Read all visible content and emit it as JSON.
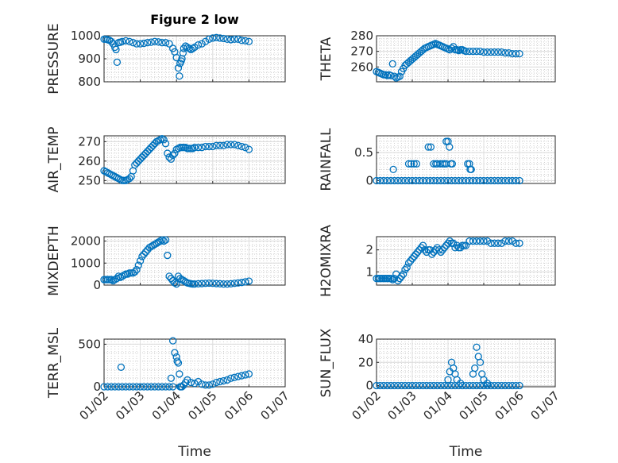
{
  "figure": {
    "title": "Figure 2 low",
    "x_axis_label": "Time",
    "x_tick_labels": [
      "01/02",
      "01/03",
      "01/04",
      "01/05",
      "01/06",
      "01/07"
    ],
    "marker_color": "#0072BD"
  },
  "chart_data": [
    {
      "type": "scatter",
      "id": "pressure",
      "ylabel": "PRESSURE",
      "title": "Figure 2 low",
      "ylim": [
        800,
        1000
      ],
      "yticks": [
        800,
        900,
        1000
      ],
      "x": [
        1.0,
        1.05,
        1.1,
        1.15,
        1.2,
        1.25,
        1.3,
        1.33,
        1.36,
        1.4,
        1.45,
        1.5,
        1.6,
        1.7,
        1.8,
        1.9,
        2.0,
        2.1,
        2.2,
        2.3,
        2.4,
        2.5,
        2.6,
        2.7,
        2.8,
        2.9,
        2.95,
        3.0,
        3.05,
        3.08,
        3.1,
        3.13,
        3.15,
        3.18,
        3.2,
        3.25,
        3.3,
        3.35,
        3.4,
        3.45,
        3.5,
        3.6,
        3.7,
        3.8,
        3.9,
        4.0,
        4.1,
        4.2,
        4.3,
        4.4,
        4.5,
        4.6,
        4.7,
        4.8,
        4.9,
        5.0
      ],
      "values": [
        985,
        985,
        983,
        980,
        975,
        965,
        950,
        940,
        885,
        970,
        972,
        975,
        978,
        975,
        970,
        965,
        965,
        967,
        970,
        972,
        975,
        973,
        970,
        970,
        965,
        945,
        930,
        905,
        860,
        825,
        880,
        890,
        900,
        925,
        945,
        955,
        950,
        945,
        940,
        945,
        950,
        960,
        965,
        975,
        985,
        990,
        992,
        990,
        988,
        985,
        983,
        985,
        985,
        980,
        978,
        975
      ]
    },
    {
      "type": "scatter",
      "id": "theta",
      "ylabel": "THETA",
      "ylim": [
        250.5,
        280
      ],
      "yticks": [
        260,
        270,
        280
      ],
      "x": [
        1.0,
        1.05,
        1.1,
        1.15,
        1.2,
        1.25,
        1.3,
        1.35,
        1.4,
        1.45,
        1.5,
        1.55,
        1.6,
        1.65,
        1.7,
        1.75,
        1.8,
        1.85,
        1.9,
        1.95,
        2.0,
        2.05,
        2.1,
        2.15,
        2.2,
        2.25,
        2.3,
        2.35,
        2.4,
        2.45,
        2.5,
        2.55,
        2.6,
        2.65,
        2.7,
        2.75,
        2.8,
        2.85,
        2.9,
        2.95,
        3.0,
        3.05,
        3.1,
        3.15,
        3.2,
        3.25,
        3.3,
        3.35,
        3.4,
        3.45,
        3.5,
        3.6,
        3.7,
        3.8,
        3.9,
        4.0,
        4.1,
        4.2,
        4.3,
        4.4,
        4.5,
        4.6,
        4.7,
        4.8,
        4.9,
        5.0
      ],
      "values": [
        257,
        256.5,
        256,
        255.5,
        255,
        255,
        254.5,
        255,
        254.5,
        262,
        254,
        253,
        253.5,
        254,
        257,
        259,
        261,
        262,
        263,
        264,
        265,
        266,
        267,
        268,
        269,
        270,
        271,
        272,
        272.5,
        273,
        273.5,
        274,
        274.5,
        275,
        274.5,
        274,
        273.5,
        273,
        272.5,
        272,
        271.5,
        271,
        272,
        273,
        271,
        271,
        270.5,
        271,
        271,
        270.5,
        270,
        270,
        270,
        270,
        270,
        269.5,
        269.5,
        269.5,
        269.5,
        269.5,
        269.5,
        269,
        269,
        268.5,
        268.5,
        268.5
      ]
    },
    {
      "type": "scatter",
      "id": "air_temp",
      "ylabel": "AIR_TEMP",
      "ylim": [
        248.5,
        273
      ],
      "yticks": [
        250,
        260,
        270
      ],
      "x": [
        1.0,
        1.05,
        1.1,
        1.15,
        1.2,
        1.25,
        1.3,
        1.35,
        1.4,
        1.45,
        1.5,
        1.55,
        1.6,
        1.65,
        1.7,
        1.75,
        1.8,
        1.85,
        1.9,
        1.95,
        2.0,
        2.05,
        2.1,
        2.15,
        2.2,
        2.25,
        2.3,
        2.35,
        2.4,
        2.45,
        2.5,
        2.55,
        2.6,
        2.65,
        2.7,
        2.75,
        2.8,
        2.85,
        2.9,
        2.95,
        3.0,
        3.05,
        3.1,
        3.15,
        3.2,
        3.25,
        3.3,
        3.35,
        3.4,
        3.45,
        3.5,
        3.6,
        3.7,
        3.8,
        3.9,
        4.0,
        4.1,
        4.2,
        4.3,
        4.4,
        4.5,
        4.6,
        4.7,
        4.8,
        4.9,
        5.0
      ],
      "values": [
        255,
        254.5,
        254,
        253.5,
        253,
        252.5,
        252,
        251.5,
        251,
        250.5,
        250,
        250,
        250,
        250.5,
        251,
        252,
        255,
        258,
        259,
        260,
        261,
        262,
        263,
        264,
        265,
        266,
        267,
        268,
        269,
        270,
        270.5,
        271,
        271.5,
        271,
        269,
        264,
        262,
        261,
        263,
        264,
        266,
        266.5,
        267,
        267,
        267,
        267,
        266.5,
        266.5,
        266.5,
        266.5,
        267,
        267,
        267,
        267.5,
        267.5,
        267.5,
        268,
        268,
        268,
        268.5,
        268.5,
        268.5,
        268,
        267.5,
        267,
        266
      ]
    },
    {
      "type": "scatter",
      "id": "rainfall",
      "ylabel": "RAINFALL",
      "ylim": [
        -0.05,
        0.8
      ],
      "yticks": [
        0,
        0.5
      ],
      "x": [
        1.0,
        1.1,
        1.2,
        1.3,
        1.4,
        1.5,
        1.6,
        1.7,
        1.8,
        1.9,
        2.0,
        2.1,
        2.2,
        2.3,
        2.4,
        2.5,
        2.6,
        2.7,
        2.8,
        2.9,
        3.0,
        3.1,
        3.2,
        3.3,
        3.4,
        3.5,
        3.6,
        3.7,
        3.8,
        3.9,
        4.0,
        4.1,
        4.2,
        4.3,
        4.4,
        4.5,
        4.6,
        4.7,
        4.8,
        4.9,
        5.0,
        1.47,
        1.9,
        1.97,
        2.05,
        2.12,
        2.45,
        2.52,
        2.6,
        2.66,
        2.7,
        2.78,
        2.85,
        2.9,
        2.95,
        3.0,
        3.04,
        3.08,
        2.95,
        3.12,
        3.55,
        3.6,
        3.62,
        3.65
      ],
      "values": [
        0,
        0,
        0,
        0,
        0,
        0,
        0,
        0,
        0,
        0,
        0,
        0,
        0,
        0,
        0,
        0,
        0,
        0,
        0,
        0,
        0,
        0,
        0,
        0,
        0,
        0,
        0,
        0,
        0,
        0,
        0,
        0,
        0,
        0,
        0,
        0,
        0,
        0,
        0,
        0,
        0,
        0.2,
        0.3,
        0.3,
        0.3,
        0.3,
        0.6,
        0.6,
        0.3,
        0.3,
        0.3,
        0.3,
        0.3,
        0.3,
        0.7,
        0.7,
        0.6,
        0.3,
        0.3,
        0.3,
        0.3,
        0.3,
        0.2,
        0.2
      ]
    },
    {
      "type": "scatter",
      "id": "mixdepth",
      "ylabel": "MIXDEPTH",
      "ylim": [
        0,
        2200
      ],
      "yticks": [
        0,
        1000,
        2000
      ],
      "x": [
        1.0,
        1.05,
        1.1,
        1.15,
        1.2,
        1.25,
        1.3,
        1.35,
        1.4,
        1.45,
        1.5,
        1.55,
        1.6,
        1.65,
        1.7,
        1.75,
        1.8,
        1.85,
        1.9,
        1.95,
        2.0,
        2.05,
        2.1,
        2.15,
        2.2,
        2.25,
        2.3,
        2.35,
        2.4,
        2.45,
        2.5,
        2.55,
        2.6,
        2.65,
        2.7,
        2.75,
        2.8,
        2.85,
        2.9,
        2.95,
        3.0,
        3.05,
        3.1,
        3.15,
        3.2,
        3.25,
        3.3,
        3.35,
        3.4,
        3.45,
        3.5,
        3.6,
        3.7,
        3.8,
        3.9,
        4.0,
        4.1,
        4.2,
        4.3,
        4.4,
        4.5,
        4.6,
        4.7,
        4.8,
        4.9,
        5.0
      ],
      "values": [
        250,
        250,
        250,
        250,
        250,
        200,
        250,
        300,
        400,
        350,
        400,
        450,
        500,
        500,
        550,
        550,
        550,
        600,
        700,
        900,
        1100,
        1300,
        1400,
        1500,
        1600,
        1700,
        1750,
        1800,
        1850,
        1900,
        1950,
        2000,
        2050,
        2000,
        2050,
        1350,
        400,
        300,
        200,
        100,
        50,
        400,
        300,
        250,
        200,
        150,
        100,
        80,
        60,
        50,
        50,
        60,
        70,
        80,
        90,
        80,
        70,
        60,
        50,
        50,
        60,
        80,
        100,
        120,
        150,
        180
      ]
    },
    {
      "type": "scatter",
      "id": "h2omixra",
      "ylabel": "H2OMIXRA",
      "ylim": [
        0.4,
        2.6
      ],
      "yticks": [
        1,
        2
      ],
      "x": [
        1.0,
        1.05,
        1.1,
        1.15,
        1.2,
        1.25,
        1.3,
        1.35,
        1.4,
        1.45,
        1.5,
        1.55,
        1.6,
        1.65,
        1.7,
        1.75,
        1.8,
        1.85,
        1.9,
        1.95,
        2.0,
        2.05,
        2.1,
        2.15,
        2.2,
        2.25,
        2.3,
        2.35,
        2.4,
        2.45,
        2.5,
        2.55,
        2.6,
        2.65,
        2.7,
        2.75,
        2.8,
        2.85,
        2.9,
        2.95,
        3.0,
        3.05,
        3.1,
        3.15,
        3.2,
        3.25,
        3.3,
        3.35,
        3.4,
        3.45,
        3.5,
        3.6,
        3.7,
        3.8,
        3.9,
        4.0,
        4.1,
        4.2,
        4.3,
        4.4,
        4.5,
        4.6,
        4.7,
        4.8,
        4.9,
        5.0
      ],
      "values": [
        0.7,
        0.7,
        0.7,
        0.7,
        0.7,
        0.7,
        0.7,
        0.7,
        0.7,
        0.65,
        0.7,
        0.9,
        0.6,
        0.7,
        0.8,
        0.9,
        1.1,
        1.2,
        1.4,
        1.5,
        1.6,
        1.7,
        1.8,
        1.9,
        2.0,
        2.1,
        2.2,
        2.0,
        1.9,
        2.0,
        2.0,
        1.8,
        1.9,
        2.0,
        2.1,
        2.0,
        1.9,
        2.0,
        2.1,
        2.2,
        2.3,
        2.4,
        2.3,
        2.3,
        2.1,
        2.2,
        2.1,
        2.1,
        2.2,
        2.2,
        2.2,
        2.4,
        2.4,
        2.4,
        2.4,
        2.4,
        2.4,
        2.3,
        2.3,
        2.3,
        2.3,
        2.4,
        2.4,
        2.4,
        2.3,
        2.3
      ]
    },
    {
      "type": "scatter",
      "id": "terr_msl",
      "ylabel": "TERR_MSL",
      "ylim": [
        0,
        560
      ],
      "yticks": [
        0,
        500
      ],
      "x": [
        1.0,
        1.1,
        1.2,
        1.3,
        1.4,
        1.5,
        1.6,
        1.7,
        1.8,
        1.9,
        2.0,
        2.1,
        2.2,
        2.3,
        2.4,
        2.5,
        2.6,
        2.7,
        2.8,
        2.9,
        1.47,
        2.85,
        2.9,
        2.95,
        3.0,
        3.02,
        3.05,
        3.08,
        3.1,
        3.12,
        3.15,
        3.2,
        3.25,
        3.3,
        3.4,
        3.5,
        3.6,
        3.7,
        3.8,
        3.9,
        4.0,
        4.1,
        4.2,
        4.3,
        4.4,
        4.5,
        4.6,
        4.7,
        4.8,
        4.9,
        5.0
      ],
      "values": [
        0,
        0,
        0,
        0,
        0,
        0,
        0,
        0,
        0,
        0,
        0,
        0,
        0,
        0,
        0,
        0,
        0,
        0,
        0,
        0,
        230,
        100,
        540,
        400,
        350,
        300,
        280,
        150,
        0,
        0,
        0,
        20,
        50,
        80,
        50,
        40,
        60,
        30,
        20,
        20,
        30,
        50,
        60,
        70,
        80,
        100,
        110,
        120,
        130,
        140,
        150
      ]
    },
    {
      "type": "scatter",
      "id": "sun_flux",
      "ylabel": "SUN_FLUX",
      "ylim": [
        -1,
        40
      ],
      "yticks": [
        0,
        20,
        40
      ],
      "x": [
        1.0,
        1.1,
        1.2,
        1.3,
        1.4,
        1.5,
        1.6,
        1.7,
        1.8,
        1.9,
        2.0,
        2.1,
        2.2,
        2.3,
        2.4,
        2.5,
        2.6,
        2.7,
        2.8,
        2.9,
        3.0,
        3.1,
        3.2,
        3.3,
        3.4,
        3.5,
        3.6,
        3.7,
        3.8,
        3.9,
        4.0,
        4.1,
        4.2,
        4.3,
        4.4,
        4.5,
        4.6,
        4.7,
        4.8,
        4.9,
        5.0,
        3.0,
        3.05,
        3.1,
        3.15,
        3.2,
        3.25,
        3.35,
        3.7,
        3.75,
        3.8,
        3.85,
        3.9,
        3.95,
        4.0,
        4.1
      ],
      "values": [
        0,
        0,
        0,
        0,
        0,
        0,
        0,
        0,
        0,
        0,
        0,
        0,
        0,
        0,
        0,
        0,
        0,
        0,
        0,
        0,
        0,
        0,
        0,
        0,
        0,
        0,
        0,
        0,
        0,
        0,
        0,
        0,
        0,
        0,
        0,
        0,
        0,
        0,
        0,
        0,
        0,
        5,
        12,
        20,
        15,
        10,
        5,
        2,
        10,
        15,
        33,
        25,
        20,
        10,
        5,
        2
      ]
    }
  ]
}
